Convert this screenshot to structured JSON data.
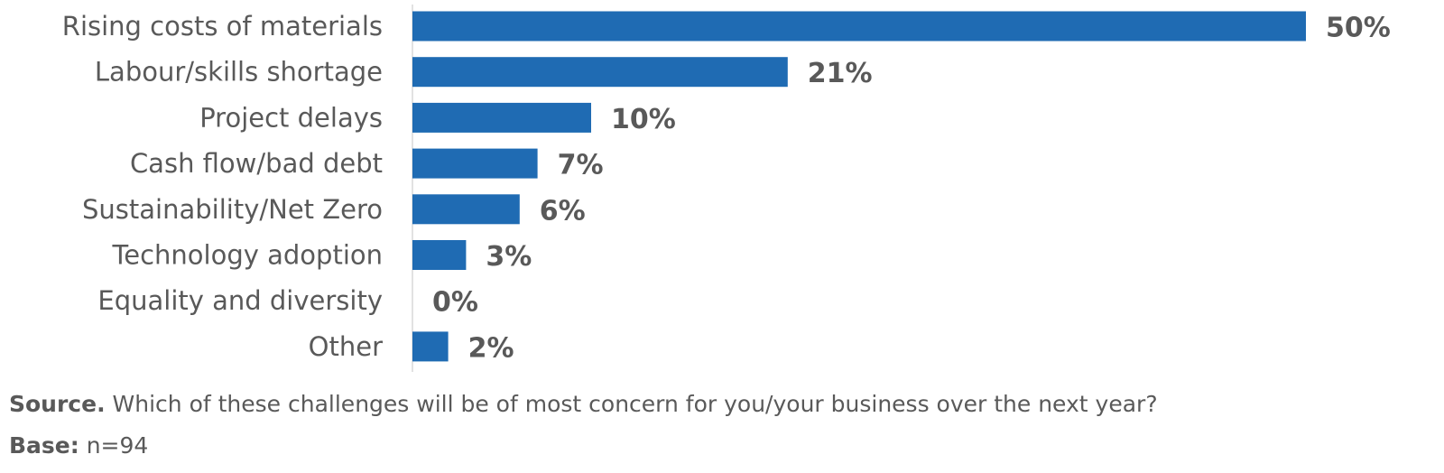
{
  "chart_data": {
    "type": "bar",
    "orientation": "horizontal",
    "categories": [
      "Rising costs of materials",
      "Labour/skills shortage",
      "Project delays",
      "Cash flow/bad debt",
      "Sustainability/Net Zero",
      "Technology adoption",
      "Equality and diversity",
      "Other"
    ],
    "values": [
      50,
      21,
      10,
      7,
      6,
      3,
      0,
      2
    ],
    "value_labels": [
      "50%",
      "21%",
      "10%",
      "7%",
      "6%",
      "3%",
      "0%",
      "2%"
    ],
    "xlim": [
      0,
      50
    ],
    "grid": false,
    "bar_color": "#1f6bb3"
  },
  "footnotes": {
    "source_label": "Source.",
    "source_text": " Which of these challenges will be of most concern for you/your business over the next year?",
    "base_label": "Base:",
    "base_text": " n=94"
  }
}
